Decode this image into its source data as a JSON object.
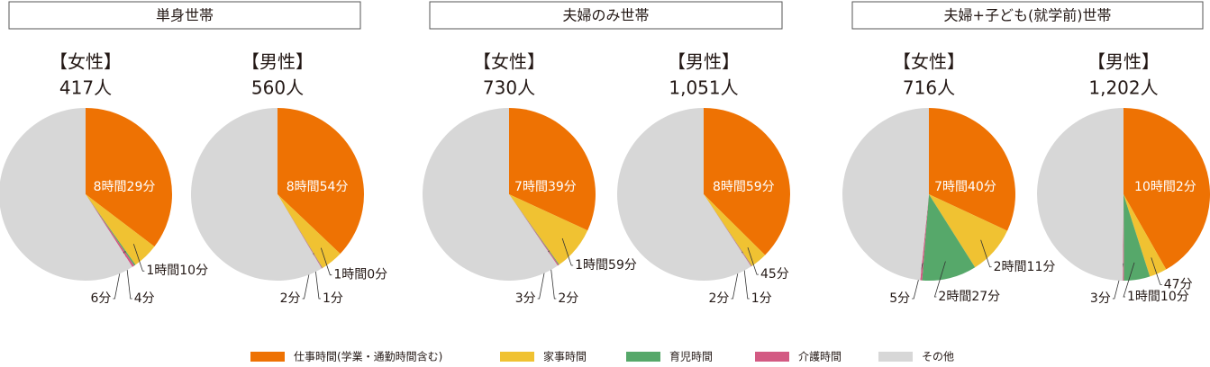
{
  "group_titles": [
    "単身世帯",
    "夫婦のみ世帯",
    "夫婦+子ども(就学前)世帯"
  ],
  "chart_data": [
    {
      "type": "pie",
      "title": "【女性】",
      "subtitle": "417人",
      "categories": [
        "仕事時間(学業・通勤時間含む)",
        "家事時間",
        "育児時間",
        "介護時間",
        "その他"
      ],
      "colors": [
        "#ee7203",
        "#f0c232",
        "#56a86a",
        "#d35a83",
        "#d7d7d7"
      ],
      "values": [
        509,
        70,
        4,
        6,
        851
      ],
      "value_labels": [
        "8時間29分",
        "1時間10分",
        "4分",
        "6分",
        null
      ]
    },
    {
      "type": "pie",
      "title": "【男性】",
      "subtitle": "560人",
      "categories": [
        "仕事時間(学業・通勤時間含む)",
        "家事時間",
        "育児時間",
        "介護時間",
        "その他"
      ],
      "colors": [
        "#ee7203",
        "#f0c232",
        "#56a86a",
        "#d35a83",
        "#d7d7d7"
      ],
      "values": [
        534,
        60,
        1,
        2,
        843
      ],
      "value_labels": [
        "8時間54分",
        "1時間0分",
        "1分",
        "2分",
        null
      ]
    },
    {
      "type": "pie",
      "title": "【女性】",
      "subtitle": "730人",
      "categories": [
        "仕事時間(学業・通勤時間含む)",
        "家事時間",
        "育児時間",
        "介護時間",
        "その他"
      ],
      "colors": [
        "#ee7203",
        "#f0c232",
        "#56a86a",
        "#d35a83",
        "#d7d7d7"
      ],
      "values": [
        459,
        119,
        2,
        3,
        857
      ],
      "value_labels": [
        "7時間39分",
        "1時間59分",
        "2分",
        "3分",
        null
      ]
    },
    {
      "type": "pie",
      "title": "【男性】",
      "subtitle": "1,051人",
      "categories": [
        "仕事時間(学業・通勤時間含む)",
        "家事時間",
        "育児時間",
        "介護時間",
        "その他"
      ],
      "colors": [
        "#ee7203",
        "#f0c232",
        "#56a86a",
        "#d35a83",
        "#d7d7d7"
      ],
      "values": [
        539,
        45,
        1,
        2,
        853
      ],
      "value_labels": [
        "8時間59分",
        "45分",
        "1分",
        "2分",
        null
      ]
    },
    {
      "type": "pie",
      "title": "【女性】",
      "subtitle": "716人",
      "categories": [
        "仕事時間(学業・通勤時間含む)",
        "家事時間",
        "育児時間",
        "介護時間",
        "その他"
      ],
      "colors": [
        "#ee7203",
        "#f0c232",
        "#56a86a",
        "#d35a83",
        "#d7d7d7"
      ],
      "values": [
        460,
        131,
        147,
        5,
        697
      ],
      "value_labels": [
        "7時間40分",
        "2時間11分",
        "2時間27分",
        "5分",
        null
      ]
    },
    {
      "type": "pie",
      "title": "【男性】",
      "subtitle": "1,202人",
      "categories": [
        "仕事時間(学業・通勤時間含む)",
        "家事時間",
        "育児時間",
        "介護時間",
        "その他"
      ],
      "colors": [
        "#ee7203",
        "#f0c232",
        "#56a86a",
        "#d35a83",
        "#d7d7d7"
      ],
      "values": [
        602,
        47,
        70,
        3,
        718
      ],
      "value_labels": [
        "10時間2分",
        "47分",
        "1時間10分",
        "3分",
        null
      ]
    }
  ]
}
